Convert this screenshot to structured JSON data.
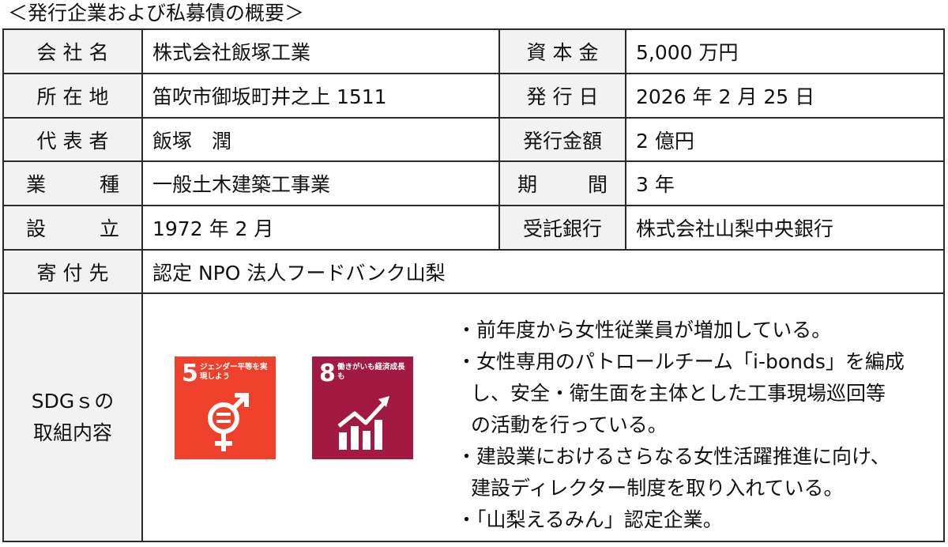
{
  "caption": "＜発行企業および私募債の概要＞",
  "rows": [
    {
      "label": "会社名",
      "value": "株式会社飯塚工業",
      "label2": "資本金",
      "value2": "5,000 万円"
    },
    {
      "label": "所在地",
      "value": "笛吹市御坂町井之上 1511",
      "label2": "発行日",
      "value2": "2026 年 2 月 25 日"
    },
    {
      "label": "代表者",
      "value": "飯塚　潤",
      "label2": "発行金額",
      "value2": "2 億円"
    },
    {
      "label_a": "業",
      "label_b": "種",
      "value": "一般土木建築工事業",
      "label2_a": "期",
      "label2_b": "間",
      "value2": "3 年"
    },
    {
      "label_a": "設",
      "label_b": "立",
      "value": "1972 年 2 月",
      "label2": "受託銀行",
      "value2": "株式会社山梨中央銀行"
    },
    {
      "label": "寄付先",
      "value": "認定 NPO 法人フードバンク山梨"
    }
  ],
  "sdgs": {
    "label_line1": "SDGｓの",
    "label_line2": "取組内容",
    "goals": [
      {
        "number": "5",
        "title": "ジェンダー平等を実現しよう",
        "color": "#ef402b",
        "icon": "gender-equality-icon"
      },
      {
        "number": "8",
        "title": "働きがいも経済成長も",
        "color": "#a21942",
        "icon": "growth-chart-icon"
      }
    ],
    "bullets": [
      {
        "lines": [
          "・前年度から女性従業員が増加している。"
        ]
      },
      {
        "lines": [
          "・女性専用のパトロールチーム「i-bonds」を編成",
          "し、安全・衛生面を主体とした工事現場巡回等",
          "の活動を行っている。"
        ]
      },
      {
        "lines": [
          "・建設業におけるさらなる女性活躍推進に向け、",
          "建設ディレクター制度を取り入れている。"
        ]
      },
      {
        "lines": [
          "・「山梨えるみん」認定企業。"
        ]
      }
    ]
  }
}
